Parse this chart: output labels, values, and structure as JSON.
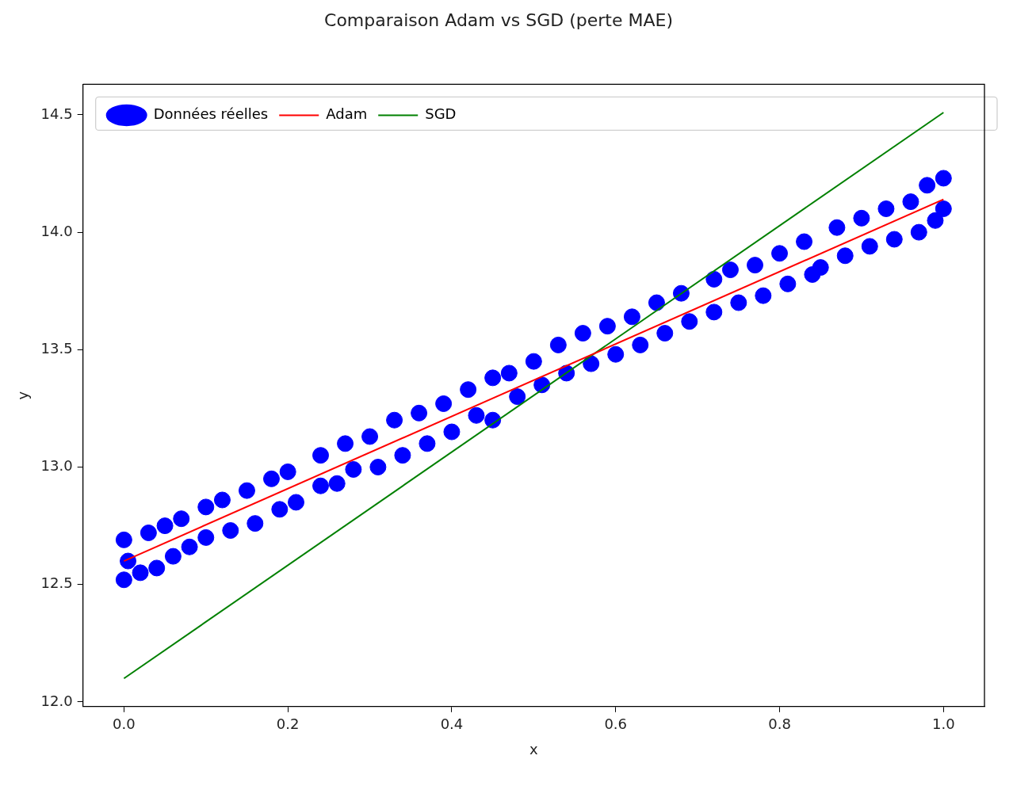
{
  "chart_data": {
    "type": "scatter",
    "title": "Comparaison Adam vs SGD (perte MAE)",
    "xlabel": "x",
    "ylabel": "y",
    "xlim": [
      -0.05,
      1.05
    ],
    "xticks": [
      {
        "value": 0,
        "label": "0.0"
      },
      {
        "value": 0.2,
        "label": "0.2"
      },
      {
        "value": 0.4,
        "label": "0.4"
      },
      {
        "value": 0.6,
        "label": "0.6"
      },
      {
        "value": 0.8,
        "label": "0.8"
      },
      {
        "value": 1,
        "label": "1.0"
      }
    ],
    "ylim": [
      11.98,
      14.63
    ],
    "yticks": [
      {
        "value": 12,
        "label": "12.0"
      },
      {
        "value": 12.5,
        "label": "12.5"
      },
      {
        "value": 13,
        "label": "13.0"
      },
      {
        "value": 13.5,
        "label": "13.5"
      },
      {
        "value": 14,
        "label": "14.0"
      },
      {
        "value": 14.5,
        "label": "14.5"
      }
    ],
    "grid": false,
    "legend": "top left",
    "series": [
      {
        "name": "Données réelles",
        "color": "#0000ff",
        "marker": "circle",
        "x": [
          0,
          0,
          0.005,
          0.02,
          0.03,
          0.04,
          0.05,
          0.06,
          0.07,
          0.08,
          0.1,
          0.1,
          0.12,
          0.13,
          0.15,
          0.16,
          0.18,
          0.19,
          0.2,
          0.21,
          0.24,
          0.24,
          0.26,
          0.27,
          0.28,
          0.3,
          0.31,
          0.33,
          0.34,
          0.36,
          0.37,
          0.39,
          0.4,
          0.42,
          0.43,
          0.45,
          0.45,
          0.47,
          0.48,
          0.5,
          0.51,
          0.53,
          0.54,
          0.56,
          0.57,
          0.59,
          0.6,
          0.62,
          0.63,
          0.65,
          0.66,
          0.68,
          0.69,
          0.72,
          0.72,
          0.74,
          0.75,
          0.77,
          0.78,
          0.8,
          0.81,
          0.83,
          0.84,
          0.85,
          0.87,
          0.88,
          0.9,
          0.91,
          0.93,
          0.94,
          0.96,
          0.97,
          0.98,
          0.99,
          1,
          1
        ],
        "values": [
          12.69,
          12.52,
          12.6,
          12.55,
          12.72,
          12.57,
          12.75,
          12.62,
          12.78,
          12.66,
          12.83,
          12.7,
          12.86,
          12.73,
          12.9,
          12.76,
          12.95,
          12.82,
          12.98,
          12.85,
          13.05,
          12.92,
          12.93,
          13.1,
          12.99,
          13.13,
          13.0,
          13.2,
          13.05,
          13.23,
          13.1,
          13.27,
          13.15,
          13.33,
          13.22,
          13.38,
          13.2,
          13.4,
          13.3,
          13.45,
          13.35,
          13.52,
          13.4,
          13.57,
          13.44,
          13.6,
          13.48,
          13.64,
          13.52,
          13.7,
          13.57,
          13.74,
          13.62,
          13.8,
          13.66,
          13.84,
          13.7,
          13.86,
          13.73,
          13.91,
          13.78,
          13.96,
          13.82,
          13.85,
          14.02,
          13.9,
          14.06,
          13.94,
          14.1,
          13.97,
          14.13,
          14.0,
          14.2,
          14.05,
          14.23,
          14.1
        ]
      },
      {
        "type": "line",
        "name": "Adam",
        "color": "#ff0000",
        "x": [
          0,
          1
        ],
        "values": [
          12.6,
          14.14
        ]
      },
      {
        "type": "line",
        "name": "SGD",
        "color": "#008000",
        "x": [
          0,
          1
        ],
        "values": [
          12.1,
          14.51
        ]
      }
    ]
  }
}
